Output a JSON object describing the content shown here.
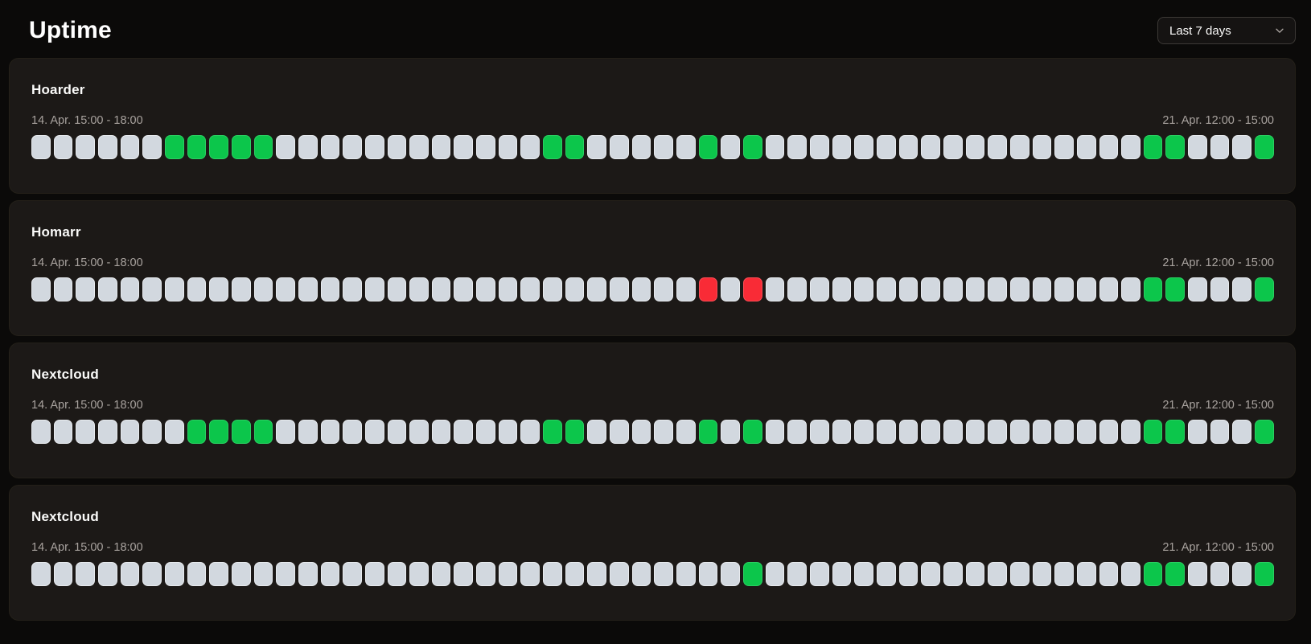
{
  "header": {
    "title": "Uptime",
    "time_range_selected": "Last 7 days"
  },
  "status_colors": {
    "operational": "#0cc64b",
    "down": "#f92b36",
    "no_data": "#d2d8df"
  },
  "cell_status_legend": {
    "n": "no-data",
    "g": "operational",
    "r": "down"
  },
  "cells_per_row": 56,
  "monitors": [
    {
      "name": "Hoarder",
      "range_start": "14. Apr. 15:00 - 18:00",
      "range_end": "21. Apr. 12:00 - 15:00",
      "cells": "nnnnnngggggnnnnnnnnnnnnggnnnnngngnnnnnnnnnnnnnnnnnggnnng"
    },
    {
      "name": "Homarr",
      "range_start": "14. Apr. 15:00 - 18:00",
      "range_end": "21. Apr. 12:00 - 15:00",
      "cells": "nnnnnnnnnnnnnnnnnnnnnnnnnnnnnnrnrnnnnnnnnnnnnnnnnnggnnng"
    },
    {
      "name": "Nextcloud",
      "range_start": "14. Apr. 15:00 - 18:00",
      "range_end": "21. Apr. 12:00 - 15:00",
      "cells": "nnnnnnnggggnnnnnnnnnnnnggnnnnngngnnnnnnnnnnnnnnnnnggnnng"
    },
    {
      "name": "Nextcloud",
      "range_start": "14. Apr. 15:00 - 18:00",
      "range_end": "21. Apr. 12:00 - 15:00",
      "cells": "nnnnnnnnnnnnnnnnnnnnnnnnnnnnnnnngnnnnnnnnnnnnnnnnnggnnng"
    }
  ]
}
